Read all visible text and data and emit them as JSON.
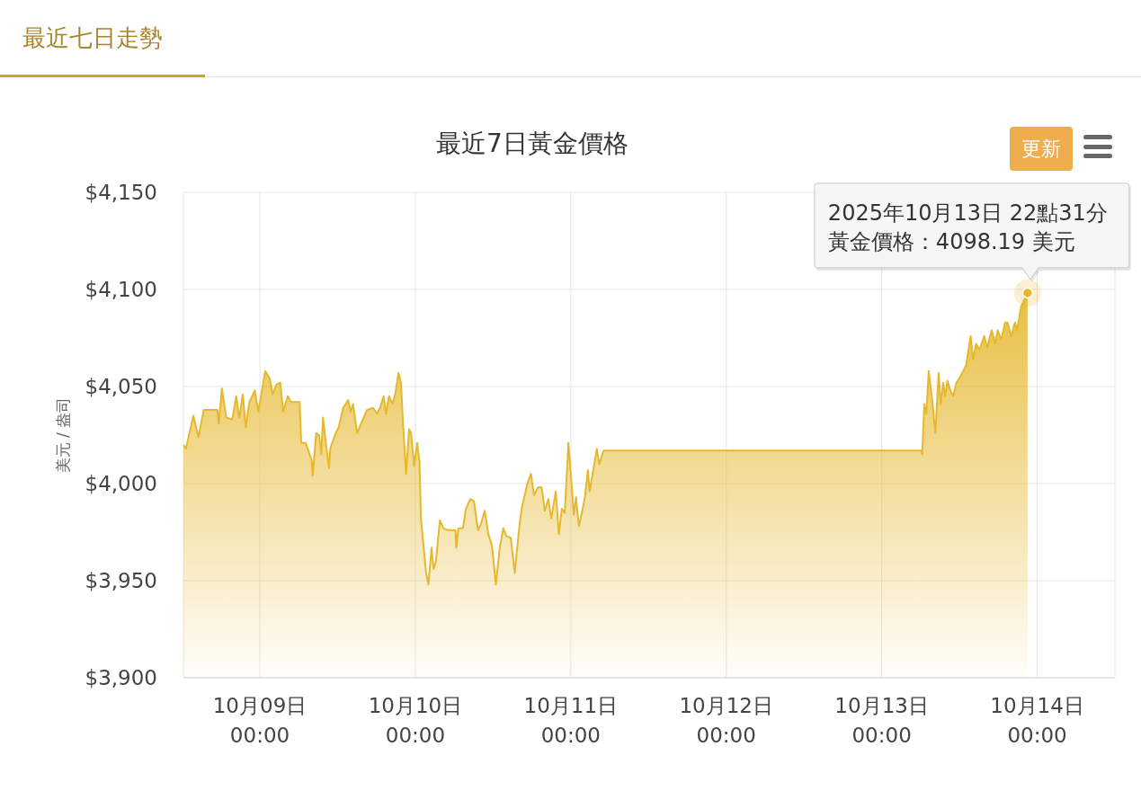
{
  "chart_data": {
    "type": "area",
    "title": "最近7日黃金價格",
    "ylabel": "美元 / 盎司",
    "color": "#e6b82e",
    "x": [
      "2025-10-08T12:12",
      "2025-10-08T12:35",
      "2025-10-08T13:44",
      "2025-10-08T14:31",
      "2025-10-08T15:21",
      "2025-10-08T16:14",
      "2025-10-08T17:26",
      "2025-10-08T17:40",
      "2025-10-08T18:08",
      "2025-10-08T18:49",
      "2025-10-08T19:44",
      "2025-10-08T20:21",
      "2025-10-08T20:49",
      "2025-10-08T21:22",
      "2025-10-08T21:49",
      "2025-10-08T22:23",
      "2025-10-08T23:13",
      "2025-10-08T23:46",
      "2025-10-09T00:50",
      "2025-10-09T01:32",
      "2025-10-09T01:59",
      "2025-10-09T02:32",
      "2025-10-09T03:09",
      "2025-10-09T03:36",
      "2025-10-09T04:18",
      "2025-10-09T04:51",
      "2025-10-09T05:08",
      "2025-10-09T06:09",
      "2025-10-09T06:23",
      "2025-10-09T07:04",
      "2025-10-09T08:00",
      "2025-10-09T08:09",
      "2025-10-09T08:42",
      "2025-10-09T09:09",
      "2025-10-09T09:29",
      "2025-10-09T09:45",
      "2025-10-09T10:13",
      "2025-10-09T10:41",
      "2025-10-09T10:52",
      "2025-10-09T11:42",
      "2025-10-09T12:10",
      "2025-10-09T12:52",
      "2025-10-09T13:38",
      "2025-10-09T14:01",
      "2025-10-09T14:23",
      "2025-10-09T15:01",
      "2025-10-09T15:38",
      "2025-10-09T16:33",
      "2025-10-09T17:29",
      "2025-10-09T18:05",
      "2025-10-09T18:33",
      "2025-10-09T19:06",
      "2025-10-09T19:28",
      "2025-10-09T19:56",
      "2025-10-09T20:29",
      "2025-10-09T20:57",
      "2025-10-09T21:24",
      "2025-10-09T21:47",
      "2025-10-09T22:06",
      "2025-10-09T22:34",
      "2025-10-09T23:02",
      "2025-10-09T23:21",
      "2025-10-09T23:49",
      "2025-10-10T00:17",
      "2025-10-10T00:39",
      "2025-10-10T00:52",
      "2025-10-10T01:21",
      "2025-10-10T01:40",
      "2025-10-10T02:02",
      "2025-10-10T02:30",
      "2025-10-10T02:49",
      "2025-10-10T03:11",
      "2025-10-10T03:47",
      "2025-10-10T04:20",
      "2025-10-10T05:02",
      "2025-10-10T06:12",
      "2025-10-10T06:20",
      "2025-10-10T06:39",
      "2025-10-10T07:21",
      "2025-10-10T07:48",
      "2025-10-10T08:30",
      "2025-10-10T09:03",
      "2025-10-10T09:40",
      "2025-10-10T10:07",
      "2025-10-10T10:43",
      "2025-10-10T11:16",
      "2025-10-10T11:50",
      "2025-10-10T12:26",
      "2025-10-10T13:02",
      "2025-10-10T13:35",
      "2025-10-10T14:03",
      "2025-10-10T14:44",
      "2025-10-10T15:21",
      "2025-10-10T15:40",
      "2025-10-10T16:08",
      "2025-10-10T16:28",
      "2025-10-10T17:18",
      "2025-10-10T17:51",
      "2025-10-10T18:19",
      "2025-10-10T18:54",
      "2025-10-10T19:31",
      "2025-10-10T19:59",
      "2025-10-10T20:32",
      "2025-10-10T20:59",
      "2025-10-10T21:41",
      "2025-10-10T22:09",
      "2025-10-10T22:37",
      "2025-10-10T23:04",
      "2025-10-10T23:38",
      "2025-10-11T00:08",
      "2025-10-11T00:28",
      "2025-10-11T00:48",
      "2025-10-11T01:15",
      "2025-10-11T01:42",
      "2025-10-11T02:11",
      "2025-10-11T02:38",
      "2025-10-11T02:55",
      "2025-10-11T03:28",
      "2025-10-11T04:01",
      "2025-10-11T04:24",
      "2025-10-11T04:51",
      "2025-10-11T05:05",
      "2025-10-13T06:06",
      "2025-10-13T06:15",
      "2025-10-13T06:34",
      "2025-10-13T06:54",
      "2025-10-13T07:15",
      "2025-10-13T07:44",
      "2025-10-13T08:17",
      "2025-10-13T08:47",
      "2025-10-13T09:07",
      "2025-10-13T09:29",
      "2025-10-13T09:48",
      "2025-10-13T10:08",
      "2025-10-13T10:35",
      "2025-10-13T11:03",
      "2025-10-13T11:31",
      "2025-10-13T12:07",
      "2025-10-13T12:35",
      "2025-10-13T13:02",
      "2025-10-13T13:44",
      "2025-10-13T14:07",
      "2025-10-13T14:34",
      "2025-10-13T15:07",
      "2025-10-13T15:49",
      "2025-10-13T16:16",
      "2025-10-13T16:58",
      "2025-10-13T17:31",
      "2025-10-13T17:54",
      "2025-10-13T18:27",
      "2025-10-13T19:03",
      "2025-10-13T19:25",
      "2025-10-13T19:59",
      "2025-10-13T20:34",
      "2025-10-13T20:54",
      "2025-10-13T21:30",
      "2025-10-13T22:04",
      "2025-10-13T22:31"
    ],
    "values": [
      4020,
      4018,
      4035,
      4024,
      4038,
      4038,
      4038,
      4031,
      4049,
      4034,
      4033,
      4045,
      4034,
      4046,
      4029,
      4042,
      4048,
      4037,
      4058,
      4054,
      4046,
      4051,
      4052,
      4037,
      4045,
      4042,
      4042,
      4042,
      4021,
      4021,
      4012,
      4004,
      4026,
      4025,
      4015,
      4034,
      4020,
      4008,
      4018,
      4026,
      4029,
      4039,
      4043,
      4037,
      4041,
      4026,
      4031,
      4038,
      4039,
      4036,
      4039,
      4045,
      4036,
      4045,
      4041,
      4047,
      4057,
      4052,
      4031,
      4005,
      4028,
      4026,
      4009,
      4021,
      4011,
      3982,
      3965,
      3954,
      3948,
      3967,
      3956,
      3960,
      3981,
      3977,
      3976,
      3976,
      3967,
      3977,
      3977,
      3987,
      3992,
      3991,
      3976,
      3979,
      3986,
      3974,
      3968,
      3948,
      3967,
      3977,
      3973,
      3972,
      3954,
      3965,
      3980,
      3988,
      4000,
      4005,
      3994,
      3998,
      3998,
      3986,
      3992,
      3982,
      3996,
      3974,
      3987,
      3985,
      4021,
      3999,
      3984,
      3993,
      3978,
      3985,
      3993,
      4007,
      3996,
      4007,
      4018,
      4010,
      4015,
      4017,
      4017,
      4015,
      4041,
      4036,
      4058,
      4045,
      4026,
      4057,
      4041,
      4052,
      4045,
      4053,
      4048,
      4045,
      4052,
      4055,
      4058,
      4061,
      4076,
      4064,
      4072,
      4069,
      4076,
      4070,
      4079,
      4072,
      4079,
      4074,
      4083,
      4083,
      4076,
      4083,
      4079,
      4091,
      4095,
      4098.19
    ],
    "xlim": [
      "2025-10-08T12:12",
      "2025-10-14T12:00"
    ],
    "xticks": [
      {
        "value": "2025-10-09T00:00",
        "label": "10月09日\n00:00"
      },
      {
        "value": "2025-10-10T00:00",
        "label": "10月10日\n00:00"
      },
      {
        "value": "2025-10-11T00:00",
        "label": "10月11日\n00:00"
      },
      {
        "value": "2025-10-12T00:00",
        "label": "10月12日\n00:00"
      },
      {
        "value": "2025-10-13T00:00",
        "label": "10月13日\n00:00"
      },
      {
        "value": "2025-10-14T00:00",
        "label": "10月14日\n00:00"
      }
    ],
    "ylim": [
      3900,
      4150
    ],
    "yticks": [
      {
        "value": 3900,
        "label": "$3,900"
      },
      {
        "value": 3950,
        "label": "$3,950"
      },
      {
        "value": 4000,
        "label": "$4,000"
      },
      {
        "value": 4050,
        "label": "$4,050"
      },
      {
        "value": 4100,
        "label": "$4,100"
      },
      {
        "value": 4150,
        "label": "$4,150"
      }
    ],
    "grid": true,
    "annotations": [
      "最近七日走勢",
      "更新",
      "2025年10月13日 22點31分",
      {
        "text": "黃金價格：4098.19 美元",
        "x": "2025-10-13T22:31",
        "y": 4098.19
      }
    ]
  }
}
